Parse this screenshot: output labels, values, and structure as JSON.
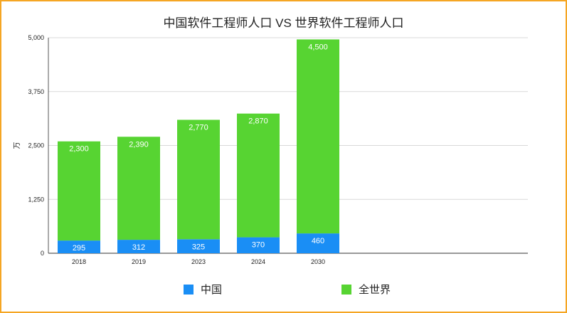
{
  "chart_data": {
    "type": "bar",
    "stacked": true,
    "title": "中国软件工程师人口 VS 世界软件工程师人口",
    "xlabel": "",
    "ylabel": "万",
    "ylim": [
      0,
      5000
    ],
    "yticks": [
      0,
      1250,
      2500,
      3750,
      5000
    ],
    "ytick_labels": [
      "0",
      "1,250",
      "2,500",
      "3,750",
      "5,000"
    ],
    "grid": true,
    "legend": "bottom",
    "categories": [
      "2018",
      "2019",
      "2023",
      "2024",
      "2030"
    ],
    "series": [
      {
        "name": "中国",
        "color": "#1a8ef5",
        "values": [
          295,
          312,
          325,
          370,
          460
        ],
        "labels": [
          "295",
          "312",
          "325",
          "370",
          "460"
        ]
      },
      {
        "name": "全世界",
        "color": "#57d432",
        "values": [
          2300,
          2390,
          2770,
          2870,
          4500
        ],
        "labels": [
          "2,300",
          "2,390",
          "2,770",
          "2,870",
          "4,500"
        ]
      }
    ]
  }
}
